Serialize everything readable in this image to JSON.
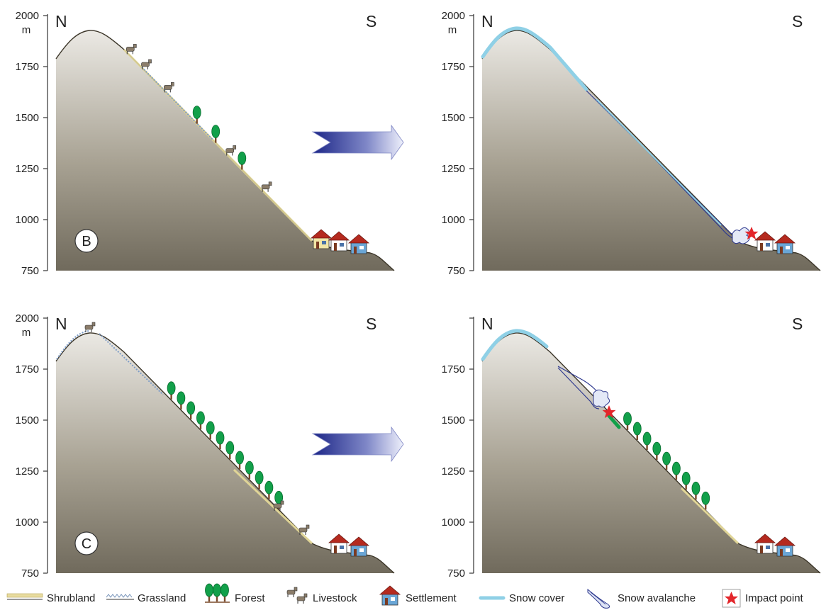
{
  "panels": [
    {
      "id": "B-before",
      "north": "N",
      "south": "S",
      "unit": "m",
      "badge": "B",
      "ticks": [
        "2000",
        "1750",
        "1500",
        "1250",
        "1000",
        "750"
      ]
    },
    {
      "id": "B-after",
      "north": "N",
      "south": "S",
      "unit": "m",
      "badge": "",
      "ticks": [
        "2000",
        "1750",
        "1500",
        "1250",
        "1000",
        "750"
      ]
    },
    {
      "id": "C-before",
      "north": "N",
      "south": "S",
      "unit": "m",
      "badge": "C",
      "ticks": [
        "2000",
        "1750",
        "1500",
        "1250",
        "1000",
        "750"
      ]
    },
    {
      "id": "C-after",
      "north": "N",
      "south": "S",
      "unit": "",
      "badge": "",
      "ticks": [
        "",
        "1750",
        "1500",
        "1250",
        "1000",
        "750"
      ]
    }
  ],
  "legend": {
    "shrubland": "Shrubland",
    "grassland": "Grassland",
    "forest": "Forest",
    "livestock": "Livestock",
    "settlement": "Settlement",
    "snow_cover": "Snow cover",
    "snow_avalanche": "Snow avalanche",
    "impact_point": "Impact point"
  },
  "colors": {
    "mountain_top": "#e9e7e2",
    "mountain_bottom": "#736d5f",
    "snow": "#8fd0e6",
    "avalanche": "#2f3a8f",
    "forest": "#12a04a",
    "impact": "#e3262b",
    "shrub": "#d8c97c",
    "arrow_dark": "#1e2a8c"
  },
  "icons": [
    "mountain-profile",
    "tree-icon",
    "livestock-icon",
    "house-icon",
    "star-icon",
    "arrow-icon"
  ]
}
